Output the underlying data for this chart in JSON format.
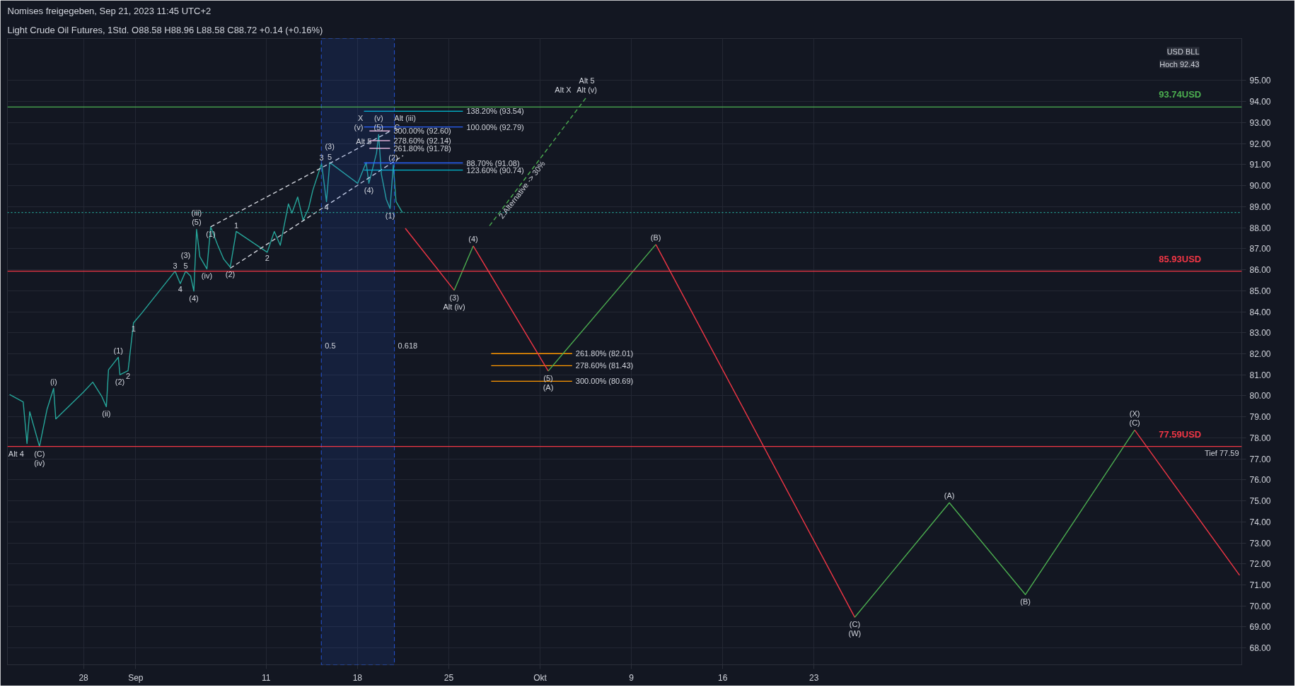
{
  "chart_data": {
    "type": "line",
    "subtitle": "Nomises freigegeben, Sep 21, 2023 11:45 UTC+2",
    "title": "Light Crude Oil Futures, 1Std.   O88.58  H88.96  L88.58  C88.72  +0.14 (+0.16%)",
    "xlim": [
      "2023-08-22T04:00",
      "2023-11-24T19:00"
    ],
    "ylim": [
      67.2,
      97.0
    ],
    "xticks": [
      {
        "value": "2023-08-28",
        "label": "28"
      },
      {
        "value": "2023-09-01",
        "label": "Sep"
      },
      {
        "value": "2023-09-11",
        "label": "11"
      },
      {
        "value": "2023-09-18",
        "label": "18"
      },
      {
        "value": "2023-09-25",
        "label": "25"
      },
      {
        "value": "2023-10-02",
        "label": "Okt"
      },
      {
        "value": "2023-10-09",
        "label": "9"
      },
      {
        "value": "2023-10-16",
        "label": "16"
      },
      {
        "value": "2023-10-23",
        "label": "23"
      }
    ],
    "yticks": [
      {
        "value": 68,
        "label": "68.00"
      },
      {
        "value": 69,
        "label": "69.00"
      },
      {
        "value": 70,
        "label": "70.00"
      },
      {
        "value": 71,
        "label": "71.00"
      },
      {
        "value": 72,
        "label": "72.00"
      },
      {
        "value": 73,
        "label": "73.00"
      },
      {
        "value": 74,
        "label": "74.00"
      },
      {
        "value": 75,
        "label": "75.00"
      },
      {
        "value": 76,
        "label": "76.00"
      },
      {
        "value": 77,
        "label": "77.00"
      },
      {
        "value": 78,
        "label": "78.00"
      },
      {
        "value": 79,
        "label": "79.00"
      },
      {
        "value": 80,
        "label": "80.00"
      },
      {
        "value": 81,
        "label": "81.00"
      },
      {
        "value": 82,
        "label": "82.00"
      },
      {
        "value": 83,
        "label": "83.00"
      },
      {
        "value": 84,
        "label": "84.00"
      },
      {
        "value": 85,
        "label": "85.00"
      },
      {
        "value": 86,
        "label": "86.00"
      },
      {
        "value": 87,
        "label": "87.00"
      },
      {
        "value": 88,
        "label": "88.00"
      },
      {
        "value": 89,
        "label": "89.00"
      },
      {
        "value": 90,
        "label": "90.00"
      },
      {
        "value": 91,
        "label": "91.00"
      },
      {
        "value": 92,
        "label": "92.00"
      },
      {
        "value": 93,
        "label": "93.00"
      },
      {
        "value": 94,
        "label": "94.00"
      },
      {
        "value": 95,
        "label": "95.00"
      }
    ],
    "grid": true,
    "marker": "none",
    "line_style": "solid",
    "series": [
      {
        "color": "#26a69a",
        "x": [
          "2023-08-22T08:00",
          "2023-08-23T09:00",
          "2023-08-23T16:00",
          "2023-08-23T21:00",
          "2023-08-24T15:00",
          "2023-08-25T05:00",
          "2023-08-25T17:00",
          "2023-08-25T21:00",
          "2023-08-28T00:30",
          "2023-08-28T17:00",
          "2023-08-29T10:00",
          "2023-08-29T18:00",
          "2023-08-29T22:00",
          "2023-08-30T16:00",
          "2023-08-30T19:00",
          "2023-08-31T10:00",
          "2023-08-31T20:00",
          "2023-09-01T11:00",
          "2023-09-04T00:30",
          "2023-09-04T10:00",
          "2023-09-04T20:00",
          "2023-09-05T05:00",
          "2023-09-05T11:00",
          "2023-09-05T16:00",
          "2023-09-05T22:00",
          "2023-09-06T11:00",
          "2023-09-06T18:00",
          "2023-09-07T07:00",
          "2023-09-07T18:00",
          "2023-09-08T06:00",
          "2023-09-08T17:00",
          "2023-09-11T02:00",
          "2023-09-11T15:00",
          "2023-09-12T02:00",
          "2023-09-12T17:00",
          "2023-09-12T23:30",
          "2023-09-13T10:00",
          "2023-09-13T20:00",
          "2023-09-14T06:00",
          "2023-09-14T14:00",
          "2023-09-15T06:00",
          "2023-09-15T15:00",
          "2023-09-15T21:00",
          "2023-09-18T00:30",
          "2023-09-18T16:00",
          "2023-09-18T21:00",
          "2023-09-19T11:00",
          "2023-09-19T15:00",
          "2023-09-19T20:00",
          "2023-09-20T05:00",
          "2023-09-20T12:00",
          "2023-09-20T18:00",
          "2023-09-20T23:00",
          "2023-09-21T09:00",
          "2023-09-21T11:00"
        ],
        "values": [
          80.06,
          79.71,
          77.73,
          79.24,
          77.59,
          79.37,
          80.35,
          78.9,
          80.19,
          80.65,
          79.95,
          79.48,
          81.24,
          81.83,
          81.0,
          81.2,
          83.47,
          83.93,
          85.93,
          85.34,
          85.93,
          85.7,
          84.98,
          87.92,
          86.62,
          86.04,
          88.04,
          87.16,
          86.5,
          86.12,
          87.82,
          86.83,
          87.82,
          87.16,
          89.13,
          88.69,
          89.46,
          88.36,
          88.91,
          89.79,
          91.05,
          89.24,
          91.1,
          90.11,
          91.1,
          90.11,
          91.54,
          92.43,
          90.55,
          89.35,
          88.91,
          90.99,
          89.24,
          88.8,
          88.72
        ]
      },
      {
        "color": "#d1d4dc",
        "line_style": "dashed",
        "x": [
          "2023-09-06T18:00",
          "2023-09-20T15:00"
        ],
        "values": [
          88.04,
          92.63
        ]
      },
      {
        "color": "#d1d4dc",
        "line_style": "dashed",
        "x": [
          "2023-09-08T06:00",
          "2023-09-21T12:00"
        ],
        "values": [
          86.07,
          91.43
        ]
      },
      {
        "color": "#00bcd4",
        "x": [
          "2023-09-18T12:00",
          "2023-09-26T02:00"
        ],
        "values": [
          93.54,
          93.54
        ]
      },
      {
        "color": "#2962ff",
        "x": [
          "2023-09-18T12:00",
          "2023-09-26T02:00"
        ],
        "values": [
          92.79,
          92.79
        ]
      },
      {
        "color": "#2962ff",
        "x": [
          "2023-09-18T12:00",
          "2023-09-26T02:00"
        ],
        "values": [
          91.08,
          91.08
        ]
      },
      {
        "color": "#00bcd4",
        "x": [
          "2023-09-18T12:00",
          "2023-09-26T02:00"
        ],
        "values": [
          90.74,
          90.74
        ]
      },
      {
        "color": "#f8bbd0",
        "x": [
          "2023-09-18T22:00",
          "2023-09-20T12:00"
        ],
        "values": [
          92.6,
          92.6
        ]
      },
      {
        "color": "#f8bbd0",
        "x": [
          "2023-09-18T22:00",
          "2023-09-20T12:00"
        ],
        "values": [
          92.14,
          92.14
        ]
      },
      {
        "color": "#f8bbd0",
        "x": [
          "2023-09-18T22:00",
          "2023-09-20T12:00"
        ],
        "values": [
          91.78,
          91.78
        ]
      },
      {
        "color": "#ff9800",
        "x": [
          "2023-09-28T06:00",
          "2023-10-04T11:00"
        ],
        "values": [
          82.01,
          82.01
        ]
      },
      {
        "color": "#ff9800",
        "x": [
          "2023-09-28T06:00",
          "2023-10-04T11:00"
        ],
        "values": [
          81.43,
          81.43
        ]
      },
      {
        "color": "#ff9800",
        "x": [
          "2023-09-28T06:00",
          "2023-10-04T11:00"
        ],
        "values": [
          80.69,
          80.69
        ]
      },
      {
        "color": "#f23645",
        "x": [
          "2023-09-21T16:00",
          "2023-09-25T10:00"
        ],
        "values": [
          87.97,
          85.02
        ]
      },
      {
        "color": "#4caf50",
        "x": [
          "2023-09-25T10:00",
          "2023-09-26T21:00"
        ],
        "values": [
          85.02,
          87.13
        ]
      },
      {
        "color": "#f23645",
        "x": [
          "2023-09-26T21:00",
          "2023-10-02T15:00"
        ],
        "values": [
          87.13,
          81.18
        ]
      },
      {
        "color": "#4caf50",
        "x": [
          "2023-10-02T15:00",
          "2023-10-10T21:00"
        ],
        "values": [
          81.18,
          87.2
        ]
      },
      {
        "color": "#f23645",
        "x": [
          "2023-10-10T21:00",
          "2023-10-26T03:00"
        ],
        "values": [
          87.2,
          69.46
        ]
      },
      {
        "color": "#4caf50",
        "x": [
          "2023-10-26T03:00",
          "2023-11-02T09:00",
          "2023-11-08T05:00",
          "2023-11-16T14:00"
        ],
        "values": [
          69.46,
          74.91,
          70.54,
          78.37
        ]
      },
      {
        "color": "#f23645",
        "x": [
          "2023-11-16T14:00",
          "2023-11-24T15:00"
        ],
        "values": [
          78.37,
          71.46
        ]
      },
      {
        "color": "#4caf50",
        "line_style": "dashed",
        "x": [
          "2023-09-28T03:00",
          "2023-10-05T14:00"
        ],
        "values": [
          88.09,
          94.23
        ]
      }
    ],
    "ref_lines": [
      {
        "axis": "y",
        "value": 93.74,
        "label": "93.74USD",
        "color": "#4caf50"
      },
      {
        "axis": "y",
        "value": 85.93,
        "label": "85.93USD",
        "color": "#f23645"
      },
      {
        "axis": "y",
        "value": 77.59,
        "label": "77.59USD",
        "color": "#f23645"
      },
      {
        "axis": "y",
        "value": 88.72,
        "color": "#26a69a",
        "line_style": "dotted"
      }
    ],
    "bands": [
      {
        "axis": "x",
        "from": "2023-09-15T05:30",
        "to": "2023-09-20T20:00",
        "color": "#2962ff"
      }
    ],
    "annotations": [
      "USD BLL",
      "Hoch 92.43",
      {
        "text": "Tief 77.59",
        "x": "2023-11-24T19:00",
        "y": 77.59
      },
      {
        "text": "(C)",
        "x": "2023-08-24T15:00",
        "y": 77.59
      },
      {
        "text": "(iv)",
        "x": "2023-08-24T15:00",
        "y": 77.59
      },
      {
        "text": "Alt 4",
        "x": "2023-08-24T15:00",
        "y": 77.59
      },
      {
        "text": "(i)",
        "x": "2023-08-25T17:00",
        "y": 80.35
      },
      {
        "text": "(ii)",
        "x": "2023-08-29T18:00",
        "y": 79.48
      },
      {
        "text": "(1)",
        "x": "2023-08-30T16:00",
        "y": 81.83
      },
      {
        "text": "(2)",
        "x": "2023-08-30T19:00",
        "y": 81.0
      },
      {
        "text": "2",
        "x": "2023-08-31T10:00",
        "y": 81.2
      },
      {
        "text": "1",
        "x": "2023-08-31T20:00",
        "y": 83.47
      },
      {
        "text": "3",
        "x": "2023-09-04T00:30",
        "y": 85.93
      },
      {
        "text": "4",
        "x": "2023-09-04T10:00",
        "y": 85.34
      },
      {
        "text": "5",
        "x": "2023-09-04T20:00",
        "y": 85.93
      },
      {
        "text": "(3)",
        "x": "2023-09-04T20:00",
        "y": 85.93
      },
      {
        "text": "(4)",
        "x": "2023-09-05T11:00",
        "y": 84.98
      },
      {
        "text": "(5)",
        "x": "2023-09-05T16:00",
        "y": 87.92
      },
      {
        "text": "(iii)",
        "x": "2023-09-05T16:00",
        "y": 87.92
      },
      {
        "text": "(iv)",
        "x": "2023-09-06T11:00",
        "y": 86.04
      },
      {
        "text": "(1)",
        "x": "2023-09-06T18:00",
        "y": 88.04
      },
      {
        "text": "(2)",
        "x": "2023-09-08T06:00",
        "y": 86.12
      },
      {
        "text": "1",
        "x": "2023-09-08T17:00",
        "y": 87.82
      },
      {
        "text": "2",
        "x": "2023-09-11T02:00",
        "y": 86.83
      },
      {
        "text": "3",
        "x": "2023-09-15T06:00",
        "y": 91.05
      },
      {
        "text": "4",
        "x": "2023-09-15T15:00",
        "y": 89.24
      },
      {
        "text": "5",
        "x": "2023-09-15T21:00",
        "y": 91.1
      },
      {
        "text": "(3)",
        "x": "2023-09-15T21:00",
        "y": 91.1
      },
      {
        "text": "(4)",
        "x": "2023-09-18T21:00",
        "y": 90.11
      },
      {
        "text": "(5)",
        "x": "2023-09-19T15:00",
        "y": 92.43
      },
      {
        "text": "(v)",
        "x": "2023-09-19T15:00",
        "y": 92.43
      },
      {
        "text": "(v)",
        "x": "2023-09-19T15:00",
        "y": 92.43
      },
      {
        "text": "C",
        "x": "2023-09-19T15:00",
        "y": 92.43
      },
      {
        "text": "X",
        "x": "2023-09-19T15:00",
        "y": 92.43
      },
      {
        "text": "Alt (iii)",
        "x": "2023-09-19T15:00",
        "y": 92.43
      },
      {
        "text": "Alt 5",
        "x": "2023-09-19T15:00",
        "y": 92.43
      },
      {
        "text": "(1)",
        "x": "2023-09-20T12:00",
        "y": 88.91
      },
      {
        "text": "(2)",
        "x": "2023-09-20T18:00",
        "y": 90.99
      },
      {
        "text": "(3)",
        "x": "2023-09-25T10:00",
        "y": 85.02
      },
      {
        "text": "Alt (iv)",
        "x": "2023-09-25T10:00",
        "y": 85.02
      },
      {
        "text": "(4)",
        "x": "2023-09-26T21:00",
        "y": 87.13
      },
      {
        "text": "(5)",
        "x": "2023-10-02T15:00",
        "y": 81.18
      },
      {
        "text": "(A)",
        "x": "2023-10-02T15:00",
        "y": 81.18
      },
      {
        "text": "(B)",
        "x": "2023-10-10T21:00",
        "y": 87.2
      },
      {
        "text": "(C)",
        "x": "2023-10-26T03:00",
        "y": 69.46
      },
      {
        "text": "(W)",
        "x": "2023-10-26T03:00",
        "y": 69.46
      },
      {
        "text": "(A)",
        "x": "2023-11-02T09:00",
        "y": 74.91
      },
      {
        "text": "(B)",
        "x": "2023-11-08T05:00",
        "y": 70.54
      },
      {
        "text": "(C)",
        "x": "2023-11-16T14:00",
        "y": 78.37
      },
      {
        "text": "(X)",
        "x": "2023-11-16T14:00",
        "y": 78.37
      },
      {
        "text": "Alt (v)",
        "x": "2023-10-05T14:00",
        "y": 94.23
      },
      {
        "text": "Alt 5",
        "x": "2023-10-05T14:00",
        "y": 94.23
      },
      {
        "text": "Alt X",
        "x": "2023-10-05T14:00",
        "y": 94.23
      },
      {
        "text": "2.Alternative -> 30%",
        "x": "2023-09-28T03:00",
        "y": 88.09
      },
      {
        "text": "0.5",
        "x": "2023-09-15T05:30",
        "y": 82.4
      },
      {
        "text": "0.618",
        "x": "2023-09-20T20:00",
        "y": 82.4
      },
      {
        "text": "138.20% (93.54)",
        "x": "2023-09-26T02:00",
        "y": 93.54
      },
      {
        "text": "100.00% (92.79)",
        "x": "2023-09-26T02:00",
        "y": 92.79
      },
      {
        "text": "300.00% (92.60)",
        "x": "2023-09-20T12:00",
        "y": 92.6
      },
      {
        "text": "278.60% (92.14)",
        "x": "2023-09-20T12:00",
        "y": 92.14
      },
      {
        "text": "261.80% (91.78)",
        "x": "2023-09-20T12:00",
        "y": 91.78
      },
      {
        "text": "88.70% (91.08)",
        "x": "2023-09-26T02:00",
        "y": 91.08
      },
      {
        "text": "123.60% (90.74)",
        "x": "2023-09-26T02:00",
        "y": 90.74
      },
      {
        "text": "261.80% (82.01)",
        "x": "2023-10-04T11:00",
        "y": 82.01
      },
      {
        "text": "278.60% (81.43)",
        "x": "2023-10-04T11:00",
        "y": 81.43
      },
      {
        "text": "300.00% (80.69)",
        "x": "2023-10-04T11:00",
        "y": 80.69
      }
    ]
  }
}
